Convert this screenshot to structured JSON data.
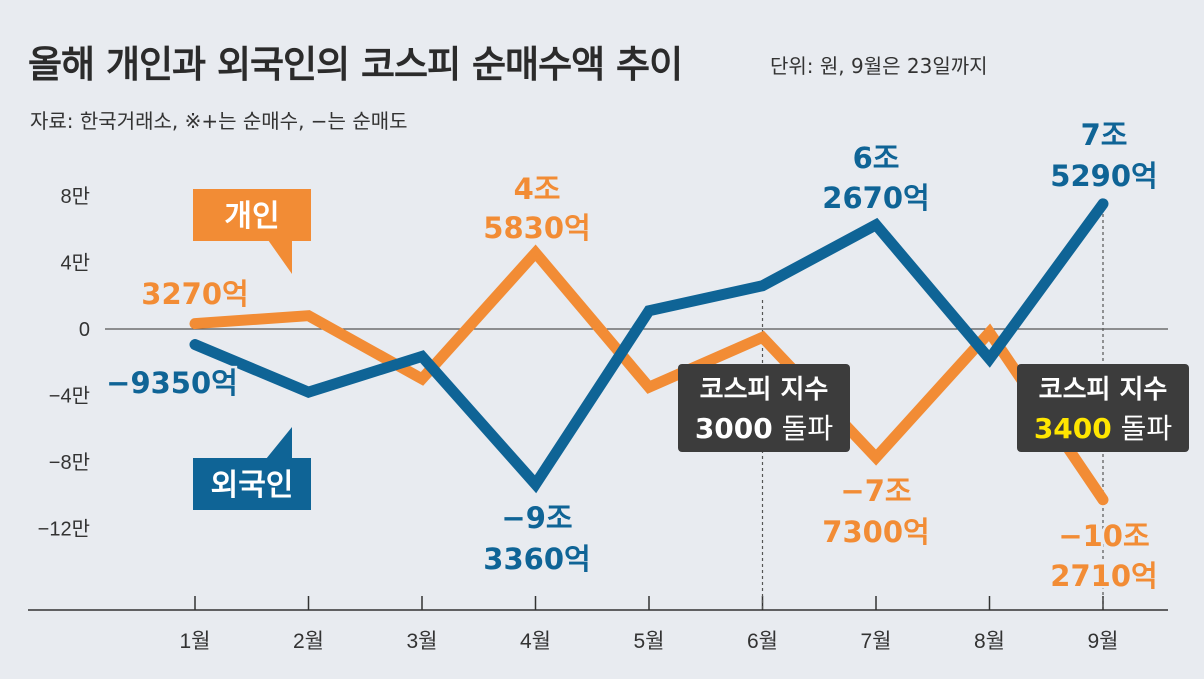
{
  "header": {
    "title": "올해 개인과 외국인의 코스피 순매수액 추이",
    "unit": "단위: 원, 9월은 23일까지",
    "source": "자료: 한국거래소, ※+는 순매수, −는 순매도"
  },
  "colors": {
    "individual": "#f28c35",
    "foreign": "#0f6496",
    "box_bg": "#3c3c3c",
    "highlight": "#ffe600"
  },
  "chart_data": {
    "type": "line",
    "categories": [
      "1월",
      "2월",
      "3월",
      "4월",
      "5월",
      "6월",
      "7월",
      "8월",
      "9월"
    ],
    "yticks": [
      "8만",
      "4만",
      "0",
      "−4만",
      "−8만",
      "−12만"
    ],
    "ytick_values": [
      80000,
      40000,
      0,
      -40000,
      -80000,
      -120000
    ],
    "ylim": [
      -170000,
      93000
    ],
    "unit_note": "억 원",
    "series": [
      {
        "name": "개인",
        "values": [
          3270,
          8000,
          -30000,
          45830,
          -35000,
          -5000,
          -77300,
          -2000,
          -102710
        ]
      },
      {
        "name": "외국인",
        "values": [
          -9350,
          -38000,
          -16500,
          -93360,
          11000,
          26000,
          62670,
          -18000,
          75290
        ]
      }
    ],
    "legend": {
      "individual": "개인",
      "foreign": "외국인"
    },
    "data_labels": {
      "ind_jan": "3270억",
      "ind_apr_1": "4조",
      "ind_apr_2": "5830억",
      "ind_jul_1": "−7조",
      "ind_jul_2": "7300억",
      "ind_sep_1": "−10조",
      "ind_sep_2": "2710억",
      "for_jan": "−9350억",
      "for_apr_1": "−9조",
      "for_apr_2": "3360억",
      "for_jul_1": "6조",
      "for_jul_2": "2670억",
      "for_sep_1": "7조",
      "for_sep_2": "5290억"
    },
    "annotations": {
      "jun": {
        "line1": "코스피 지수",
        "number": "3000",
        "suffix": " 돌파"
      },
      "sep": {
        "line1": "코스피 지수",
        "number": "3400",
        "suffix": " 돌파"
      }
    }
  }
}
